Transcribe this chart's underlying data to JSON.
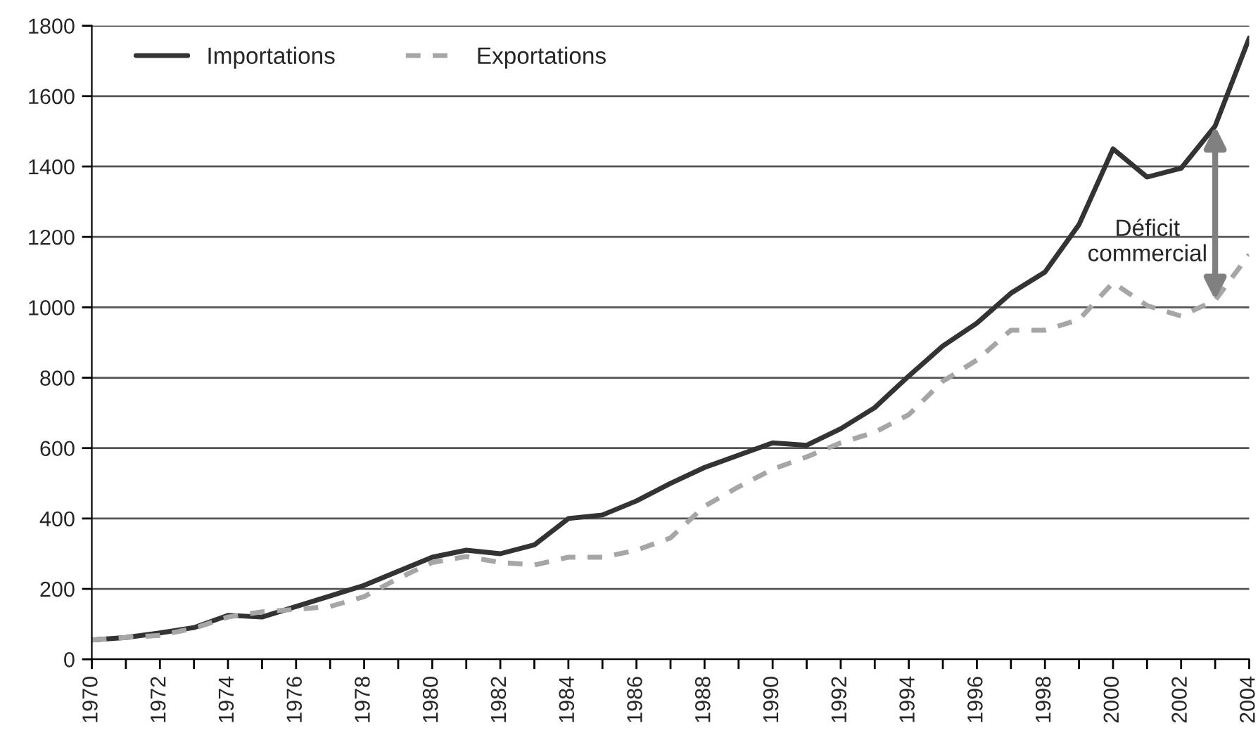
{
  "chart_data": {
    "type": "line",
    "x": [
      1970,
      1971,
      1972,
      1973,
      1974,
      1975,
      1976,
      1977,
      1978,
      1979,
      1980,
      1981,
      1982,
      1983,
      1984,
      1985,
      1986,
      1987,
      1988,
      1989,
      1990,
      1991,
      1992,
      1993,
      1994,
      1995,
      1996,
      1997,
      1998,
      1999,
      2000,
      2001,
      2002,
      2003,
      2004
    ],
    "series": [
      {
        "name": "Importations",
        "color": "#333333",
        "line_style": "solid",
        "values": [
          55,
          62,
          75,
          90,
          125,
          120,
          150,
          180,
          210,
          250,
          290,
          310,
          300,
          325,
          400,
          410,
          450,
          500,
          545,
          580,
          615,
          608,
          655,
          715,
          805,
          890,
          955,
          1040,
          1100,
          1235,
          1450,
          1370,
          1395,
          1515,
          1765
        ]
      },
      {
        "name": "Exportations",
        "color": "#a6a6a6",
        "line_style": "dashed",
        "values": [
          55,
          62,
          68,
          88,
          120,
          135,
          142,
          150,
          178,
          230,
          275,
          292,
          275,
          268,
          290,
          290,
          310,
          345,
          435,
          490,
          540,
          575,
          615,
          645,
          695,
          790,
          850,
          935,
          935,
          965,
          1070,
          1005,
          975,
          1020,
          1150
        ]
      }
    ],
    "xlim": [
      1970,
      2004
    ],
    "ylim": [
      0,
      1800
    ],
    "xticks": [
      1970,
      {
        "value": 1971,
        "label": null
      },
      1972,
      {
        "value": 1973,
        "label": null
      },
      1974,
      {
        "value": 1975,
        "label": null
      },
      1976,
      {
        "value": 1977,
        "label": null
      },
      1978,
      {
        "value": 1979,
        "label": null
      },
      1980,
      {
        "value": 1981,
        "label": null
      },
      1982,
      {
        "value": 1983,
        "label": null
      },
      1984,
      {
        "value": 1985,
        "label": null
      },
      1986,
      {
        "value": 1987,
        "label": null
      },
      1988,
      {
        "value": 1989,
        "label": null
      },
      1990,
      {
        "value": 1991,
        "label": null
      },
      1992,
      {
        "value": 1993,
        "label": null
      },
      1994,
      {
        "value": 1995,
        "label": null
      },
      1996,
      {
        "value": 1997,
        "label": null
      },
      1998,
      {
        "value": 1999,
        "label": null
      },
      2000,
      {
        "value": 2001,
        "label": null
      },
      2002,
      {
        "value": 2003,
        "label": null
      },
      2004
    ],
    "yticks": [
      0,
      200,
      400,
      600,
      800,
      1000,
      1200,
      1400,
      1600,
      1800
    ],
    "grid": "y",
    "legend": "top left",
    "marker": "none",
    "annotations": [
      "Déficit\ncommercial"
    ]
  }
}
